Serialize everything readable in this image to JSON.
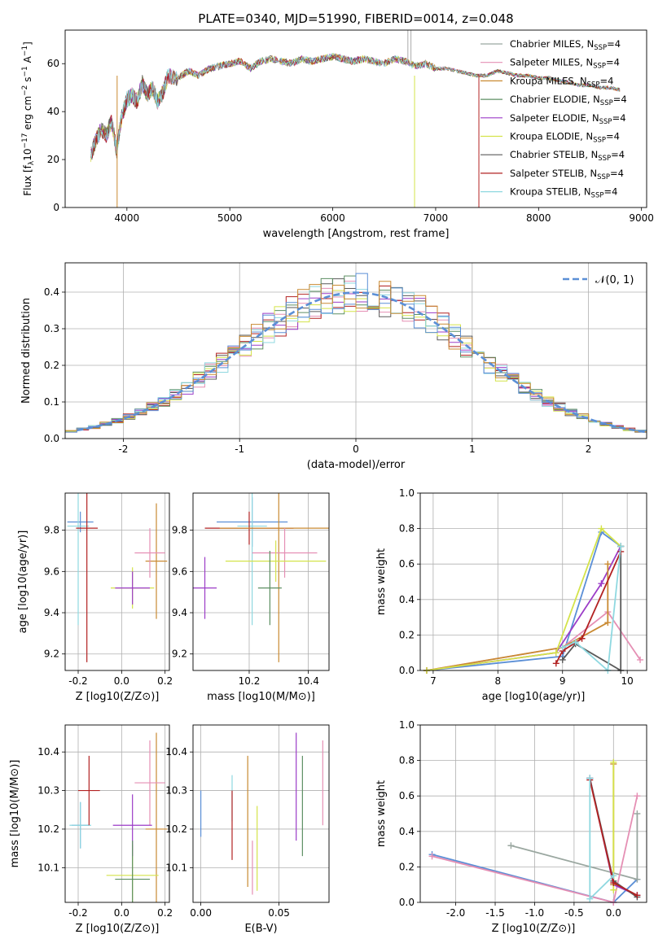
{
  "title": "PLATE=0340, MJD=51990, FIBERID=0014, z=0.048",
  "colors": [
    "#9aa7a0",
    "#e58fb4",
    "#c98a32",
    "#5d8f63",
    "#9b3cc7",
    "#d4e34a",
    "#5a5a5a",
    "#b22222",
    "#8fd8e0"
  ],
  "legend_models": [
    {
      "name": "Chabrier MILES, N",
      "sub": "SSP",
      "tail": "=4",
      "color": "#9aa7a0"
    },
    {
      "name": "Salpeter MILES, N",
      "sub": "SSP",
      "tail": "=4",
      "color": "#e58fb4"
    },
    {
      "name": "Kroupa MILES, N",
      "sub": "SSP",
      "tail": "=4",
      "color": "#c98a32"
    },
    {
      "name": "Chabrier ELODIE, N",
      "sub": "SSP",
      "tail": "=4",
      "color": "#5d8f63"
    },
    {
      "name": "Salpeter ELODIE, N",
      "sub": "SSP",
      "tail": "=4",
      "color": "#9b3cc7"
    },
    {
      "name": "Kroupa ELODIE, N",
      "sub": "SSP",
      "tail": "=4",
      "color": "#d4e34a"
    },
    {
      "name": "Chabrier STELIB, N",
      "sub": "SSP",
      "tail": "=4",
      "color": "#5a5a5a"
    },
    {
      "name": "Salpeter STELIB, N",
      "sub": "SSP",
      "tail": "=4",
      "color": "#b22222"
    },
    {
      "name": "Kroupa STELIB, N",
      "sub": "SSP",
      "tail": "=4",
      "color": "#8fd8e0"
    }
  ],
  "chart_data": [
    {
      "type": "line",
      "name": "spectrum",
      "xlabel": "wavelength [Angstrom, rest frame]",
      "ylabel": "Flux [f_λ 10^-17 erg cm^-2 s^-1 A^-1]",
      "xlim": [
        3400,
        9050
      ],
      "ylim": [
        0,
        74
      ],
      "xticks": [
        "4000",
        "5000",
        "6000",
        "7000",
        "8000",
        "9000"
      ],
      "yticks": [
        "0",
        "20",
        "40",
        "60"
      ],
      "x": [
        3650,
        3700,
        3750,
        3800,
        3850,
        3900,
        3950,
        4000,
        4050,
        4100,
        4150,
        4200,
        4250,
        4300,
        4350,
        4400,
        4500,
        4600,
        4700,
        4800,
        4900,
        5000,
        5100,
        5200,
        5300,
        5400,
        5500,
        5600,
        5700,
        5800,
        5900,
        6000,
        6100,
        6200,
        6300,
        6400,
        6500,
        6600,
        6700,
        6800,
        6900,
        7000,
        7100,
        7200,
        7300,
        7400,
        7500,
        7600,
        7700,
        7800,
        7900,
        8000,
        8100,
        8200,
        8300,
        8400,
        8500,
        8600,
        8700,
        8800
      ],
      "y": [
        22,
        28,
        33,
        30,
        36,
        24,
        38,
        45,
        47,
        44,
        52,
        47,
        50,
        44,
        48,
        55,
        54,
        57,
        55,
        58,
        59,
        60,
        61,
        58,
        61,
        62,
        61,
        60,
        62,
        61,
        62,
        63,
        62,
        61,
        62,
        61,
        60,
        62,
        61,
        59,
        60,
        58,
        58,
        57,
        56,
        55,
        55,
        57,
        56,
        55,
        55,
        54,
        54,
        53,
        52,
        51,
        51,
        50,
        50,
        49
      ],
      "grid": false
    },
    {
      "type": "line",
      "name": "residual-distribution",
      "xlabel": "(data-model)/error",
      "ylabel": "Normed distribution",
      "xlim": [
        -2.5,
        2.5
      ],
      "ylim": [
        0,
        0.48
      ],
      "xticks": [
        "-2",
        "-1",
        "0",
        "1",
        "2"
      ],
      "yticks": [
        "0.0",
        "0.1",
        "0.2",
        "0.3",
        "0.4"
      ],
      "legend": "N(0,1)",
      "legend_label": "𝒩(0, 1)",
      "legend_placement": "top-right",
      "grid": true
    },
    {
      "type": "scatter",
      "name": "age-vs-Z",
      "xlabel": "Z [log10(Z/Z⊙)]",
      "ylabel": "age [log10(age/yr)]",
      "xlim": [
        -0.26,
        0.22
      ],
      "ylim": [
        9.12,
        9.98
      ],
      "xticks": [
        "-0.2",
        "0.0",
        "0.2"
      ],
      "yticks": [
        "9.2",
        "9.4",
        "9.6",
        "9.8"
      ],
      "points": [
        {
          "x": -0.19,
          "y": 9.84,
          "xerr": 0.06,
          "yerr": 0.05
        },
        {
          "x": -0.2,
          "y": 9.82,
          "xerr": 0.05,
          "yerr": 0.48
        },
        {
          "x": -0.16,
          "y": 9.81,
          "xerr": 0.05,
          "yerr": 0.65
        },
        {
          "x": 0.16,
          "y": 9.65,
          "xerr": 0.05,
          "yerr": 0.28
        },
        {
          "x": 0.13,
          "y": 9.69,
          "xerr": 0.07,
          "yerr": 0.12
        },
        {
          "x": 0.05,
          "y": 9.52,
          "xerr": 0.1,
          "yerr": 0.1
        },
        {
          "x": 0.05,
          "y": 9.52,
          "xerr": 0.08,
          "yerr": 0.08
        }
      ],
      "grid": true
    },
    {
      "type": "scatter",
      "name": "age-vs-mass",
      "xlabel": "mass [log10(M/M⊙)]",
      "ylabel": "",
      "xlim": [
        10.01,
        10.47
      ],
      "ylim": [
        9.12,
        9.98
      ],
      "xticks": [
        "10.2",
        "10.4"
      ],
      "yticks": [
        "9.2",
        "9.4",
        "9.6",
        "9.8"
      ],
      "points": [
        {
          "x": 10.21,
          "y": 9.84,
          "xerr": 0.12,
          "yerr": 0.12
        },
        {
          "x": 10.21,
          "y": 9.82,
          "xerr": 0.05,
          "yerr": 0.48
        },
        {
          "x": 10.2,
          "y": 9.81,
          "xerr": 0.15,
          "yerr": 0.08
        },
        {
          "x": 10.3,
          "y": 9.81,
          "xerr": 0.2,
          "yerr": 0.65
        },
        {
          "x": 10.32,
          "y": 9.69,
          "xerr": 0.11,
          "yerr": 0.12
        },
        {
          "x": 10.29,
          "y": 9.65,
          "xerr": 0.17,
          "yerr": 0.1
        },
        {
          "x": 10.05,
          "y": 9.52,
          "xerr": 0.04,
          "yerr": 0.15
        },
        {
          "x": 10.27,
          "y": 9.52,
          "xerr": 0.04,
          "yerr": 0.18
        }
      ],
      "grid": true
    },
    {
      "type": "line",
      "name": "mass-weight-vs-age",
      "xlabel": "age [log10(age/yr)]",
      "ylabel": "mass weight",
      "xlim": [
        6.8,
        10.3
      ],
      "ylim": [
        0,
        1.0
      ],
      "xticks": [
        "7",
        "8",
        "9",
        "10"
      ],
      "yticks": [
        "0.0",
        "0.2",
        "0.4",
        "0.6",
        "0.8",
        "1.0"
      ],
      "series": [
        {
          "x": [
            6.9,
            9.0,
            9.6,
            9.9
          ],
          "y": [
            0.0,
            0.08,
            0.78,
            0.7
          ]
        },
        {
          "x": 6.9,
          "y": 0.0
        },
        {
          "x": [
            6.9,
            9.0,
            9.7,
            10.2
          ],
          "y": [
            0.0,
            0.13,
            0.33,
            0.06
          ]
        },
        {
          "x": [
            6.9,
            8.9,
            9.6,
            9.9
          ],
          "y": [
            0.0,
            0.1,
            0.49,
            0.7
          ]
        },
        {
          "x": [
            6.9,
            9.0,
            9.7,
            9.7
          ],
          "y": [
            0.0,
            0.13,
            0.27,
            0.6
          ]
        },
        {
          "x": [
            6.9,
            8.9,
            9.6,
            9.9
          ],
          "y": [
            0.0,
            0.1,
            0.8,
            0.7
          ]
        },
        {
          "x": [
            9.0,
            9.2,
            9.9,
            9.9
          ],
          "y": [
            0.06,
            0.15,
            0.0,
            0.7
          ]
        },
        {
          "x": [
            8.9,
            9.0,
            9.3,
            9.9
          ],
          "y": [
            0.04,
            0.11,
            0.18,
            0.67
          ]
        },
        {
          "x": [
            9.0,
            9.2,
            9.7,
            9.9
          ],
          "y": [
            0.13,
            0.16,
            0.0,
            0.7
          ]
        }
      ],
      "grid": true
    },
    {
      "type": "scatter",
      "name": "mass-vs-Z",
      "xlabel": "Z [log10(Z/Z⊙)]",
      "ylabel": "mass [log10(M/M⊙)]",
      "xlim": [
        -0.26,
        0.22
      ],
      "ylim": [
        10.01,
        10.47
      ],
      "xticks": [
        "-0.2",
        "0.0",
        "0.2"
      ],
      "yticks": [
        "10.1",
        "10.2",
        "10.3",
        "10.4"
      ],
      "points": [
        {
          "x": -0.19,
          "y": 10.21,
          "xerr": 0.04,
          "yerr": 0.06
        },
        {
          "x": -0.19,
          "y": 10.21,
          "xerr": 0.05,
          "yerr": 0.06
        },
        {
          "x": -0.15,
          "y": 10.3,
          "xerr": 0.05,
          "yerr": 0.09
        },
        {
          "x": 0.16,
          "y": 10.2,
          "xerr": 0.05,
          "yerr": 0.25
        },
        {
          "x": 0.13,
          "y": 10.32,
          "xerr": 0.07,
          "yerr": 0.11
        },
        {
          "x": 0.05,
          "y": 10.08,
          "xerr": 0.12,
          "yerr": 0.08
        },
        {
          "x": 0.05,
          "y": 10.21,
          "xerr": 0.09,
          "yerr": 0.08
        },
        {
          "x": 0.05,
          "y": 10.07,
          "xerr": 0.08,
          "yerr": 0.1
        }
      ],
      "grid": true
    },
    {
      "type": "scatter",
      "name": "mass-vs-EBV",
      "xlabel": "E(B-V)",
      "ylabel": "",
      "xlim": [
        -0.005,
        0.082
      ],
      "ylim": [
        10.01,
        10.47
      ],
      "xticks": [
        "0.00",
        "0.05"
      ],
      "yticks": [
        "10.1",
        "10.2",
        "10.3",
        "10.4"
      ],
      "points": [
        {
          "x": 0.0,
          "y": 10.24,
          "yerr": 0.06
        },
        {
          "x": 0.02,
          "y": 10.28,
          "yerr": 0.06
        },
        {
          "x": 0.02,
          "y": 10.21,
          "yerr": 0.09
        },
        {
          "x": 0.03,
          "y": 10.22,
          "yerr": 0.17
        },
        {
          "x": 0.033,
          "y": 10.1,
          "yerr": 0.07
        },
        {
          "x": 0.036,
          "y": 10.15,
          "yerr": 0.11
        },
        {
          "x": 0.061,
          "y": 10.31,
          "yerr": 0.14
        },
        {
          "x": 0.065,
          "y": 10.26,
          "yerr": 0.13
        },
        {
          "x": 0.078,
          "y": 10.32,
          "yerr": 0.11
        }
      ],
      "grid": true
    },
    {
      "type": "line",
      "name": "mass-weight-vs-Z",
      "xlabel": "Z [log10(Z/Z⊙)]",
      "ylabel": "mass weight",
      "xlim": [
        -2.45,
        0.42
      ],
      "ylim": [
        0,
        1.0
      ],
      "xticks": [
        "-2.0",
        "-1.5",
        "-1.0",
        "-0.5",
        "0.0"
      ],
      "yticks": [
        "0.0",
        "0.2",
        "0.4",
        "0.6",
        "0.8",
        "1.0"
      ],
      "series": [
        {
          "x": [
            -2.3,
            0.0,
            0.3
          ],
          "y": [
            0.27,
            0.0,
            0.13
          ]
        },
        {
          "x": [
            -1.3,
            0.3,
            0.3
          ],
          "y": [
            0.32,
            0.13,
            0.5
          ]
        },
        {
          "x": [
            -2.3,
            0.0,
            0.3
          ],
          "y": [
            0.26,
            0.0,
            0.6
          ]
        },
        {
          "x": [
            -0.3,
            0.0,
            0.3
          ],
          "y": [
            0.7,
            0.1,
            0.04
          ]
        },
        {
          "x": [
            0.0,
            0.0
          ],
          "y": [
            0.78,
            0.1
          ]
        },
        {
          "x": [
            0.0,
            0.0
          ],
          "y": [
            0.79,
            0.07
          ]
        },
        {
          "x": [
            -0.3,
            0.0,
            0.3
          ],
          "y": [
            0.7,
            0.12,
            0.03
          ]
        },
        {
          "x": [
            -0.3,
            0.0,
            0.3
          ],
          "y": [
            0.69,
            0.11,
            0.04
          ]
        },
        {
          "x": [
            -0.3,
            -0.3,
            0.0
          ],
          "y": [
            0.7,
            0.02,
            0.15
          ]
        }
      ],
      "grid": true
    }
  ]
}
